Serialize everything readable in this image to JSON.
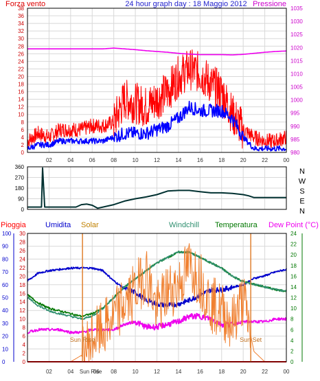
{
  "chart_data": [
    {
      "type": "line",
      "title": "24 hour graph day : 18 Maggio 2012",
      "left_axis_label": "Forza vento",
      "right_axis_label": "Pressione",
      "x_ticks": [
        "02",
        "04",
        "06",
        "08",
        "10",
        "12",
        "14",
        "16",
        "18",
        "20",
        "22",
        "00"
      ],
      "left_ticks": [
        "0",
        "2",
        "4",
        "6",
        "8",
        "10",
        "12",
        "14",
        "16",
        "18",
        "20",
        "22",
        "24",
        "26",
        "28",
        "30",
        "32",
        "34",
        "36",
        "38"
      ],
      "right_ticks": [
        "980",
        "985",
        "990",
        "995",
        "1000",
        "1005",
        "1010",
        "1015",
        "1020",
        "1025",
        "1030",
        "1035"
      ],
      "ylim_left": [
        0,
        38
      ],
      "ylim_right": [
        980,
        1035
      ],
      "x": [
        0,
        1,
        2,
        3,
        4,
        5,
        6,
        7,
        8,
        9,
        10,
        11,
        12,
        13,
        14,
        15,
        16,
        17,
        18,
        19,
        20,
        21,
        22,
        23,
        24
      ],
      "series": [
        {
          "key": "gust",
          "color": "#ff0000",
          "axis": "left",
          "values": [
            3,
            5,
            4,
            6,
            6,
            6,
            7,
            7,
            8,
            14,
            13,
            12,
            14,
            16,
            20,
            22,
            21,
            18,
            16,
            10,
            6,
            4,
            3,
            3,
            4
          ]
        },
        {
          "key": "speed",
          "color": "#0000ff",
          "axis": "left",
          "values": [
            1,
            2,
            2,
            3,
            3,
            3,
            3,
            3,
            4,
            5,
            5,
            5,
            6,
            7,
            9,
            12,
            11,
            11,
            11,
            9,
            4,
            1,
            1,
            1,
            1
          ]
        },
        {
          "key": "pressure",
          "color": "#ee00ee",
          "axis": "right",
          "values": [
            1019.5,
            1019.5,
            1019.5,
            1019.5,
            1019.5,
            1019.5,
            1019.5,
            1019.5,
            1019.8,
            1019.5,
            1019.2,
            1018.8,
            1018.5,
            1018.2,
            1017.8,
            1017.5,
            1017.3,
            1017.3,
            1017.3,
            1017.2,
            1017.4,
            1017.8,
            1018.2,
            1018.5,
            1018.7
          ]
        }
      ]
    },
    {
      "type": "line",
      "direction_labels": [
        "N",
        "W",
        "S",
        "E",
        "N"
      ],
      "left_ticks": [
        "0",
        "90",
        "180",
        "270",
        "360"
      ],
      "ylim": [
        0,
        360
      ],
      "x_ticks": [
        "02",
        "04",
        "06",
        "08",
        "10",
        "12",
        "14",
        "16",
        "18",
        "20",
        "22",
        "00"
      ],
      "x": [
        0,
        0.5,
        1,
        1.3,
        1.4,
        1.6,
        2,
        3,
        4,
        4.5,
        5,
        5.5,
        6,
        6.5,
        7,
        8,
        9,
        10,
        11,
        12,
        13,
        14,
        15,
        16,
        17,
        18,
        19,
        20,
        20.5,
        21,
        22,
        23,
        24
      ],
      "series": [
        {
          "key": "wind_direction",
          "color": "#003030",
          "values": [
            20,
            20,
            20,
            20,
            350,
            20,
            20,
            20,
            20,
            20,
            40,
            45,
            35,
            10,
            20,
            40,
            70,
            90,
            105,
            125,
            155,
            160,
            160,
            150,
            140,
            140,
            135,
            125,
            115,
            100,
            100,
            100,
            100
          ]
        }
      ]
    },
    {
      "type": "line",
      "legend": [
        {
          "label": "Pioggia",
          "color": "#ff0000"
        },
        {
          "label": "Umidita",
          "color": "#0000cc"
        },
        {
          "label": "Solar",
          "color": "#c08000"
        },
        {
          "label": "Windchill",
          "color": "#2f8f6f"
        },
        {
          "label": "Temperatura",
          "color": "#007700"
        },
        {
          "label": "Dew Point (°C)",
          "color": "#ee00ee"
        }
      ],
      "humidity_ticks": [
        "0",
        "10",
        "20",
        "30",
        "40",
        "50",
        "60",
        "70",
        "80",
        "90",
        "100"
      ],
      "rain_ticks": [
        "0",
        "2",
        "4",
        "6",
        "8",
        "10",
        "12",
        "14",
        "16",
        "18",
        "20",
        "22",
        "24",
        "26",
        "28",
        "30"
      ],
      "temp_ticks": [
        "0",
        "2",
        "4",
        "6",
        "8",
        "10",
        "12",
        "14",
        "16",
        "18",
        "20",
        "22",
        "24"
      ],
      "x_ticks": [
        "02",
        "04",
        "Sun Rise",
        "06",
        "08",
        "10",
        "12",
        "14",
        "16",
        "18",
        "20",
        "22",
        "00"
      ],
      "sunrise_label": "Sun Rise",
      "sunset_label": "Sun Set",
      "sunrise_hour": 5.1,
      "sunset_hour": 20.7,
      "ylim_humidity": [
        0,
        100
      ],
      "ylim_temp": [
        0,
        24
      ],
      "x": [
        0,
        1,
        2,
        3,
        4,
        5,
        6,
        7,
        8,
        9,
        10,
        11,
        12,
        13,
        14,
        15,
        16,
        17,
        18,
        19,
        20,
        21,
        22,
        23,
        24
      ],
      "series": [
        {
          "key": "humidity",
          "color": "#0000cc",
          "axis": "humidity",
          "values": [
            63,
            69,
            71,
            72,
            73,
            73,
            73,
            71,
            63,
            57,
            54,
            48,
            45,
            44,
            45,
            48,
            52,
            56,
            56,
            58,
            60,
            65,
            67,
            70,
            72
          ]
        },
        {
          "key": "temperature",
          "color": "#007700",
          "axis": "temp",
          "values": [
            12.5,
            11,
            10,
            9.5,
            9,
            8.5,
            9,
            10,
            12,
            14,
            15.5,
            17,
            18.5,
            19.5,
            20.5,
            20.5,
            19.5,
            18.5,
            17.5,
            16,
            15,
            14.5,
            14,
            13.5,
            13.2
          ]
        },
        {
          "key": "windchill",
          "color": "#2f8f6f",
          "axis": "temp",
          "values": [
            12,
            10.5,
            9.5,
            9,
            8.5,
            8,
            8.5,
            10,
            12,
            14,
            15.5,
            17,
            18.5,
            19.5,
            20.5,
            20.5,
            19.5,
            18.5,
            17.5,
            16,
            15,
            14.5,
            14,
            13.5,
            13.2
          ]
        },
        {
          "key": "dew_point",
          "color": "#ee00ee",
          "axis": "temp",
          "values": [
            5.5,
            6,
            6,
            6,
            5.5,
            5.5,
            6,
            6,
            6,
            7,
            7.5,
            6.5,
            6.5,
            7,
            7.5,
            8.5,
            8.5,
            8,
            7,
            7,
            7.5,
            7.5,
            7.5,
            8,
            8
          ]
        },
        {
          "key": "solar",
          "color": "#f08030",
          "axis": "humidity",
          "values": [
            0,
            0,
            0,
            0,
            0,
            5,
            18,
            25,
            35,
            45,
            55,
            70,
            40,
            55,
            60,
            75,
            65,
            45,
            40,
            30,
            50,
            8,
            0,
            0,
            0
          ]
        },
        {
          "key": "rain",
          "color": "#ff0000",
          "axis": "rain",
          "values": [
            0,
            0,
            0,
            0,
            0,
            0,
            0,
            0,
            0,
            0,
            0,
            0,
            0,
            0,
            0,
            0,
            0,
            0,
            0,
            0,
            0,
            0,
            0,
            0,
            0
          ]
        }
      ]
    }
  ]
}
